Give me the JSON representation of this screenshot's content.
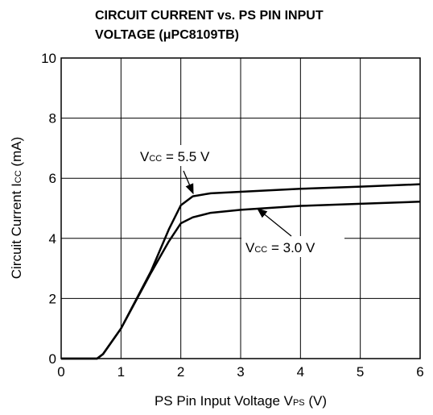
{
  "chart_data": {
    "type": "line",
    "title": [
      "CIRCUIT CURRENT vs. PS PIN INPUT",
      "VOLTAGE (μPC8109TB)"
    ],
    "xlabel": {
      "main": "PS Pin Input Voltage  V",
      "sub": "PS",
      "unit": " (V)"
    },
    "ylabel": {
      "main": "Circuit Current  I",
      "sub": "CC",
      "unit": " (mA)"
    },
    "xlim": [
      0,
      6
    ],
    "xticks": [
      0,
      1,
      2,
      3,
      4,
      5,
      6
    ],
    "ylim": [
      0,
      10
    ],
    "yticks": [
      0,
      2,
      4,
      6,
      8,
      10
    ],
    "grid": true,
    "series": [
      {
        "name": {
          "main": "V",
          "sub": "CC",
          "rest": " = 5.5 V"
        },
        "color": "#000000",
        "x": [
          0,
          0.6,
          0.7,
          1,
          1.5,
          1.8,
          2,
          2.2,
          2.5,
          3,
          4,
          5,
          6
        ],
        "values": [
          0,
          0,
          0.15,
          1,
          2.9,
          4.3,
          5.1,
          5.4,
          5.5,
          5.55,
          5.65,
          5.72,
          5.8
        ]
      },
      {
        "name": {
          "main": "V",
          "sub": "CC",
          "rest": " = 3.0 V"
        },
        "color": "#000000",
        "x": [
          0,
          0.6,
          0.7,
          1,
          1.5,
          1.8,
          2,
          2.2,
          2.5,
          3,
          4,
          5,
          6
        ],
        "values": [
          0,
          0,
          0.15,
          1,
          2.85,
          3.9,
          4.5,
          4.7,
          4.85,
          4.95,
          5.08,
          5.15,
          5.22
        ]
      }
    ]
  }
}
